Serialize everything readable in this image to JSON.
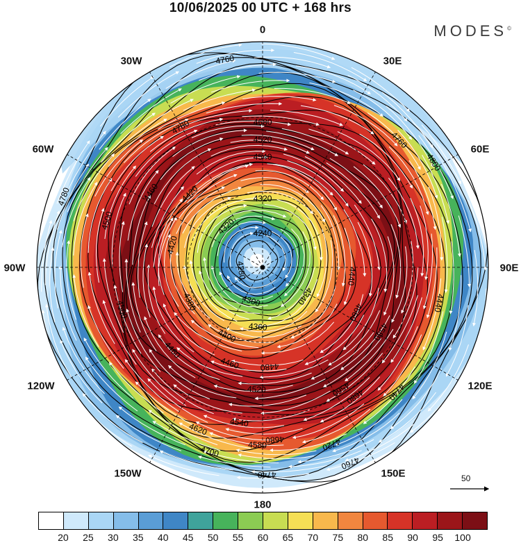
{
  "header": {
    "title": "10/06/2025  00 UTC  + 168 hrs",
    "brand": "MODES",
    "brand_mark": "©"
  },
  "map": {
    "projection": "polar-stereographic",
    "hemisphere": "south",
    "longitude_labels": {
      "top": "0",
      "top_left": "30W",
      "top_right": "30E",
      "upper_left": "60W",
      "upper_right": "60E",
      "left": "90W",
      "right": "90E",
      "lower_left": "120W",
      "lower_right": "120E",
      "bottom_left": "150W",
      "bottom_right": "150E",
      "bottom": "180"
    },
    "contour_labels": [
      "4780",
      "4760",
      "4680",
      "4520",
      "4540",
      "4760",
      "4800",
      "4420",
      "4460",
      "4500",
      "4320",
      "4240",
      "4320",
      "4280",
      "4780",
      "4440",
      "4420",
      "4340",
      "4300",
      "4380",
      "4460",
      "4500",
      "4360",
      "4400",
      "4460",
      "4580",
      "4660",
      "4440",
      "4480",
      "4520",
      "4540",
      "4560",
      "4580",
      "4680",
      "4620",
      "4740",
      "4720",
      "4680",
      "4700",
      "4760",
      "4740"
    ],
    "center_marker": "pole",
    "wind_vector_reference": "50"
  },
  "colorbar": {
    "ticks": [
      "20",
      "25",
      "30",
      "35",
      "40",
      "45",
      "50",
      "55",
      "60",
      "65",
      "70",
      "75",
      "80",
      "85",
      "90",
      "95",
      "100"
    ],
    "colors": [
      "#ffffff",
      "#cfe9fb",
      "#aad6f5",
      "#85bde9",
      "#5a9dd6",
      "#3f86c6",
      "#3fa39b",
      "#47b35b",
      "#8bcc53",
      "#c8dd52",
      "#f5df55",
      "#f8b84c",
      "#f1863f",
      "#e6592f",
      "#d63327",
      "#bb1e23",
      "#9b1519",
      "#7c0f15"
    ]
  }
}
